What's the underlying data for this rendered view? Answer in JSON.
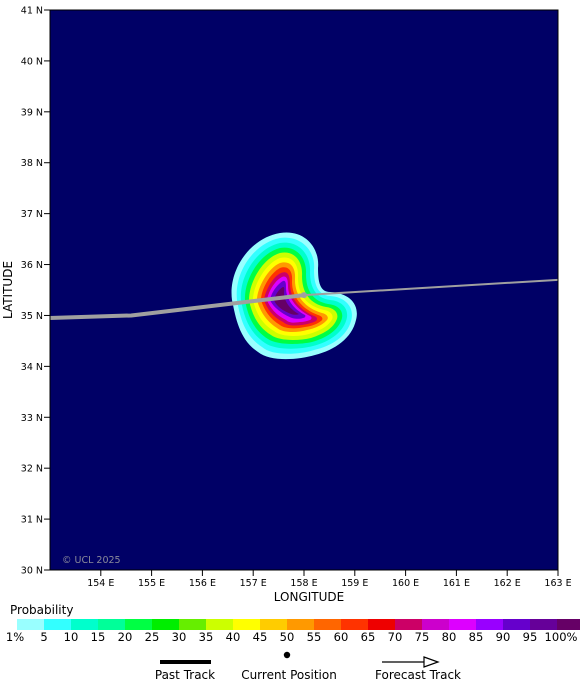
{
  "map": {
    "background_color": "#000066",
    "x_axis_label": "LONGITUDE",
    "y_axis_label": "LATITUDE",
    "copyright": "© UCL 2025",
    "lon_ticks": [
      "154 E",
      "155 E",
      "156 E",
      "157 E",
      "158 E",
      "159 E",
      "160 E",
      "161 E",
      "162 E",
      "163 E"
    ],
    "lat_ticks": [
      "41 N",
      "40 N",
      "39 N",
      "38 N",
      "37 N",
      "36 N",
      "35 N",
      "34 N",
      "33 N",
      "32 N",
      "31 N",
      "30 N"
    ],
    "lon_range": [
      153,
      163
    ],
    "lat_range": [
      30,
      41
    ]
  },
  "storm": {
    "current_position": {
      "lon": 158.0,
      "lat": 35.4
    },
    "track_color": "#a0a0a0",
    "past_track": [
      [
        153.0,
        34.95
      ],
      [
        154.6,
        35.0
      ],
      [
        158.0,
        35.4
      ]
    ],
    "forecast_track": [
      [
        158.0,
        35.4
      ],
      [
        163.0,
        35.7
      ]
    ]
  },
  "legend": {
    "title": "Probability",
    "bins": [
      {
        "label": "1%",
        "color": "#99ffff"
      },
      {
        "label": "5",
        "color": "#33ffff"
      },
      {
        "label": "10",
        "color": "#00ffcc"
      },
      {
        "label": "15",
        "color": "#00ff99"
      },
      {
        "label": "20",
        "color": "#00ff44"
      },
      {
        "label": "25",
        "color": "#00ee00"
      },
      {
        "label": "30",
        "color": "#66ee00"
      },
      {
        "label": "35",
        "color": "#ccff00"
      },
      {
        "label": "40",
        "color": "#ffff00"
      },
      {
        "label": "45",
        "color": "#ffcc00"
      },
      {
        "label": "50",
        "color": "#ff9900"
      },
      {
        "label": "55",
        "color": "#ff6600"
      },
      {
        "label": "60",
        "color": "#ff3300"
      },
      {
        "label": "65",
        "color": "#ee0000"
      },
      {
        "label": "70",
        "color": "#cc0066"
      },
      {
        "label": "75",
        "color": "#cc00cc"
      },
      {
        "label": "80",
        "color": "#dd00ff"
      },
      {
        "label": "85",
        "color": "#9900ff"
      },
      {
        "label": "90",
        "color": "#6600cc"
      },
      {
        "label": "95",
        "color": "#660099"
      },
      {
        "label": "100%",
        "color": "#660066"
      }
    ],
    "past_track_label": "Past Track",
    "current_position_label": "Current Position",
    "forecast_track_label": "Forecast Track"
  }
}
